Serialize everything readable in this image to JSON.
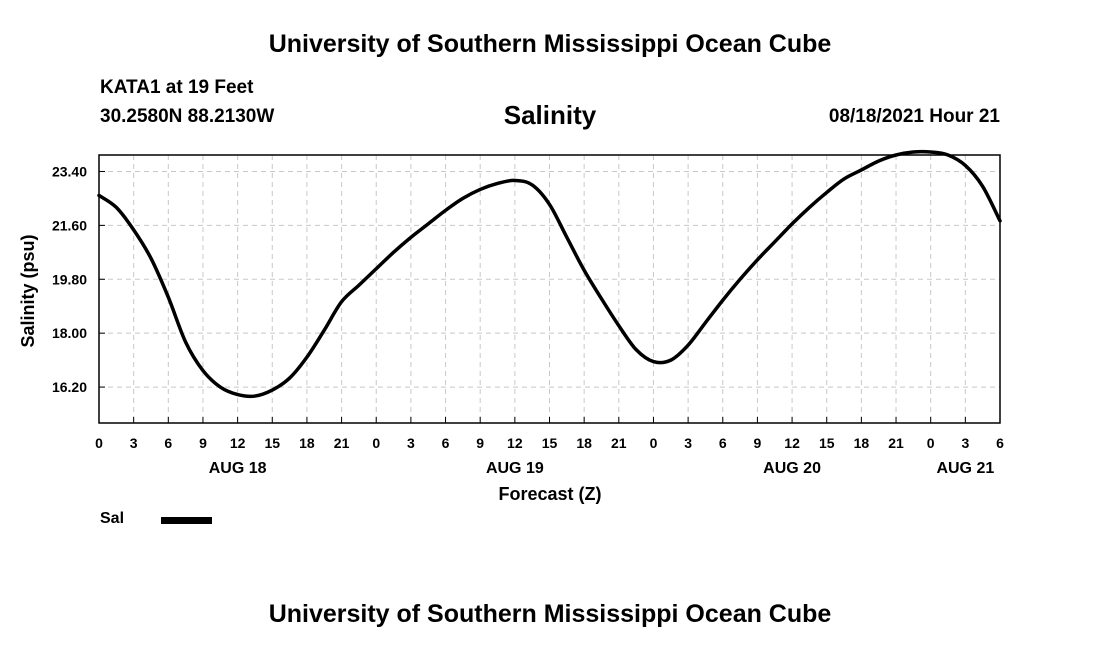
{
  "header": {
    "title": "University of Southern Mississippi Ocean Cube",
    "station": "KATA1 at 19 Feet",
    "coordinates": "30.2580N  88.2130W",
    "variable": "Salinity",
    "timestamp": "08/18/2021 Hour 21"
  },
  "footer": {
    "title": "University of Southern Mississippi Ocean Cube"
  },
  "legend": {
    "label": "Sal",
    "color": "#000000"
  },
  "chart_data": {
    "type": "line",
    "title": "Salinity",
    "xlabel": "Forecast (Z)",
    "ylabel": "Salinity (psu)",
    "xlim": [
      0,
      78
    ],
    "ylim": [
      15.0,
      23.95
    ],
    "grid": true,
    "x_ticks": [
      {
        "x": 0,
        "label": "0"
      },
      {
        "x": 3,
        "label": "3"
      },
      {
        "x": 6,
        "label": "6"
      },
      {
        "x": 9,
        "label": "9"
      },
      {
        "x": 12,
        "label": "12"
      },
      {
        "x": 15,
        "label": "15"
      },
      {
        "x": 18,
        "label": "18"
      },
      {
        "x": 21,
        "label": "21"
      },
      {
        "x": 24,
        "label": "0"
      },
      {
        "x": 27,
        "label": "3"
      },
      {
        "x": 30,
        "label": "6"
      },
      {
        "x": 33,
        "label": "9"
      },
      {
        "x": 36,
        "label": "12"
      },
      {
        "x": 39,
        "label": "15"
      },
      {
        "x": 42,
        "label": "18"
      },
      {
        "x": 45,
        "label": "21"
      },
      {
        "x": 48,
        "label": "0"
      },
      {
        "x": 51,
        "label": "3"
      },
      {
        "x": 54,
        "label": "6"
      },
      {
        "x": 57,
        "label": "9"
      },
      {
        "x": 60,
        "label": "12"
      },
      {
        "x": 63,
        "label": "15"
      },
      {
        "x": 66,
        "label": "18"
      },
      {
        "x": 69,
        "label": "21"
      },
      {
        "x": 72,
        "label": "0"
      },
      {
        "x": 75,
        "label": "3"
      },
      {
        "x": 78,
        "label": "6"
      }
    ],
    "date_labels": [
      {
        "x": 12,
        "label": "AUG 18"
      },
      {
        "x": 36,
        "label": "AUG 19"
      },
      {
        "x": 60,
        "label": "AUG 20"
      },
      {
        "x": 75,
        "label": "AUG 21"
      }
    ],
    "y_ticks": [
      {
        "y": 16.2,
        "label": "16.20"
      },
      {
        "y": 18.0,
        "label": "18.00"
      },
      {
        "y": 19.8,
        "label": "19.80"
      },
      {
        "y": 21.6,
        "label": "21.60"
      },
      {
        "y": 23.4,
        "label": "23.40"
      }
    ],
    "series": [
      {
        "name": "Sal",
        "x": [
          0,
          1.5,
          3,
          4.5,
          6,
          7.5,
          9,
          10.5,
          12,
          13.5,
          15,
          16.5,
          18,
          19.5,
          21,
          22.5,
          24,
          25.5,
          27,
          28.5,
          30,
          31.5,
          33,
          34.5,
          36,
          37.5,
          39,
          40.5,
          42,
          43.5,
          45,
          46.5,
          48,
          49.5,
          51,
          52.5,
          54,
          55.5,
          57,
          58.5,
          60,
          61.5,
          63,
          64.5,
          66,
          67.5,
          69,
          70.5,
          72,
          73.5,
          75,
          76.5,
          78
        ],
        "values": [
          22.6,
          22.2,
          21.45,
          20.5,
          19.2,
          17.7,
          16.75,
          16.2,
          15.95,
          15.9,
          16.1,
          16.5,
          17.2,
          18.1,
          19.05,
          19.6,
          20.15,
          20.7,
          21.2,
          21.65,
          22.1,
          22.5,
          22.8,
          23.0,
          23.1,
          22.95,
          22.3,
          21.2,
          20.1,
          19.15,
          18.25,
          17.45,
          17.05,
          17.1,
          17.6,
          18.35,
          19.1,
          19.8,
          20.45,
          21.05,
          21.65,
          22.2,
          22.7,
          23.15,
          23.45,
          23.75,
          23.95,
          24.05,
          24.05,
          23.95,
          23.6,
          22.9,
          21.75
        ]
      }
    ]
  }
}
